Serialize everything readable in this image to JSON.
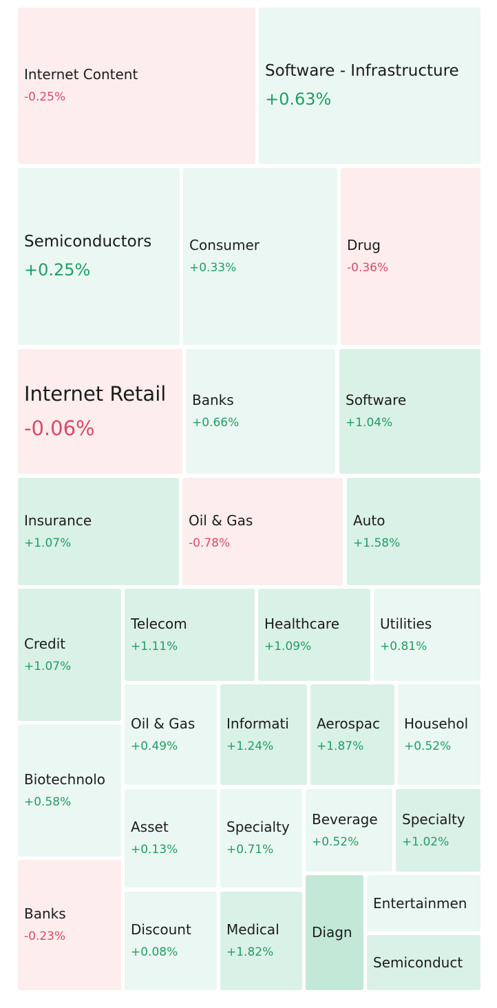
{
  "colors": {
    "positive_text": "#1e9e63",
    "negative_text": "#d94a68",
    "positive_light": "#ebf7f2",
    "positive_medium": "#daf1e7",
    "positive_strong": "#c4e8d8",
    "negative_light": "#fdeded"
  },
  "tiles": [
    {
      "name": "Internet Content",
      "change": "-0.25%"
    },
    {
      "name": "Software - Infrastructure",
      "change": "+0.63%"
    },
    {
      "name": "Semiconductors",
      "change": "+0.25%"
    },
    {
      "name": "Consumer",
      "change": "+0.33%"
    },
    {
      "name": "Drug",
      "change": "-0.36%"
    },
    {
      "name": "Internet Retail",
      "change": "-0.06%"
    },
    {
      "name": "Banks",
      "change": "+0.66%"
    },
    {
      "name": "Software",
      "change": "+1.04%"
    },
    {
      "name": "Insurance",
      "change": "+1.07%"
    },
    {
      "name": "Oil & Gas",
      "change": "-0.78%"
    },
    {
      "name": "Auto",
      "change": "+1.58%"
    },
    {
      "name": "Credit",
      "change": "+1.07%"
    },
    {
      "name": "Telecom",
      "change": "+1.11%"
    },
    {
      "name": "Healthcare",
      "change": "+1.09%"
    },
    {
      "name": "Utilities",
      "change": "+0.81%"
    },
    {
      "name": "Oil & Gas",
      "change": "+0.49%"
    },
    {
      "name": "Informati",
      "change": "+1.24%"
    },
    {
      "name": "Aerospac",
      "change": "+1.87%"
    },
    {
      "name": "Househol",
      "change": "+0.52%"
    },
    {
      "name": "Biotechnolo",
      "change": "+0.58%"
    },
    {
      "name": "Asset",
      "change": "+0.13%"
    },
    {
      "name": "Specialty",
      "change": "+0.71%"
    },
    {
      "name": "Beverage",
      "change": "+0.52%"
    },
    {
      "name": "Specialty",
      "change": "+1.02%"
    },
    {
      "name": "Banks",
      "change": "-0.23%"
    },
    {
      "name": "Discount",
      "change": "+0.08%"
    },
    {
      "name": "Medical",
      "change": "+1.82%"
    },
    {
      "name": "Diagn"
    },
    {
      "name": "Entertainmen"
    },
    {
      "name": "Semiconduct"
    }
  ]
}
